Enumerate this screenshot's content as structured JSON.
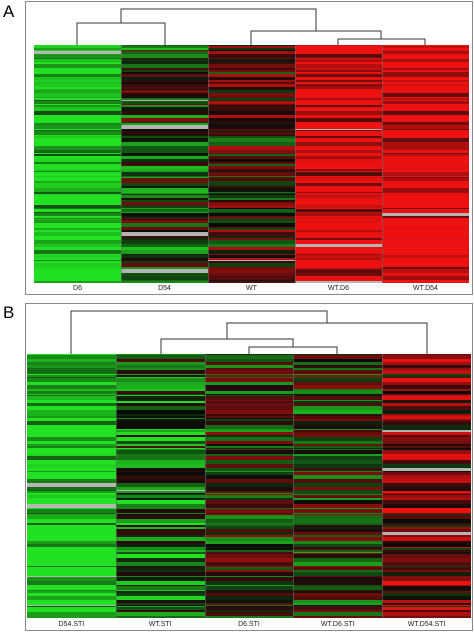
{
  "panels": [
    {
      "id": "A",
      "letter": "A",
      "columns": [
        {
          "label": "D6",
          "bias": -0.85
        },
        {
          "label": "D54",
          "bias": -0.15
        },
        {
          "label": "WT",
          "bias": 0.05
        },
        {
          "label": "WT.D6",
          "bias": 0.85
        },
        {
          "label": "WT.D54",
          "bias": 0.9
        }
      ],
      "seed": 11
    },
    {
      "id": "B",
      "letter": "B",
      "columns": [
        {
          "label": "D54.STI",
          "bias": -0.9
        },
        {
          "label": "WT.STI",
          "bias": -0.35
        },
        {
          "label": "D6.STI",
          "bias": -0.05
        },
        {
          "label": "WT.D6.STI",
          "bias": -0.1
        },
        {
          "label": "WT.D54.STI",
          "bias": 0.35
        }
      ],
      "seed": 29
    }
  ],
  "colors": {
    "green": "#22e022",
    "red": "#ee1111",
    "black": "#0a0a0a",
    "gray": "#b5b5b5",
    "line": "#333333"
  }
}
